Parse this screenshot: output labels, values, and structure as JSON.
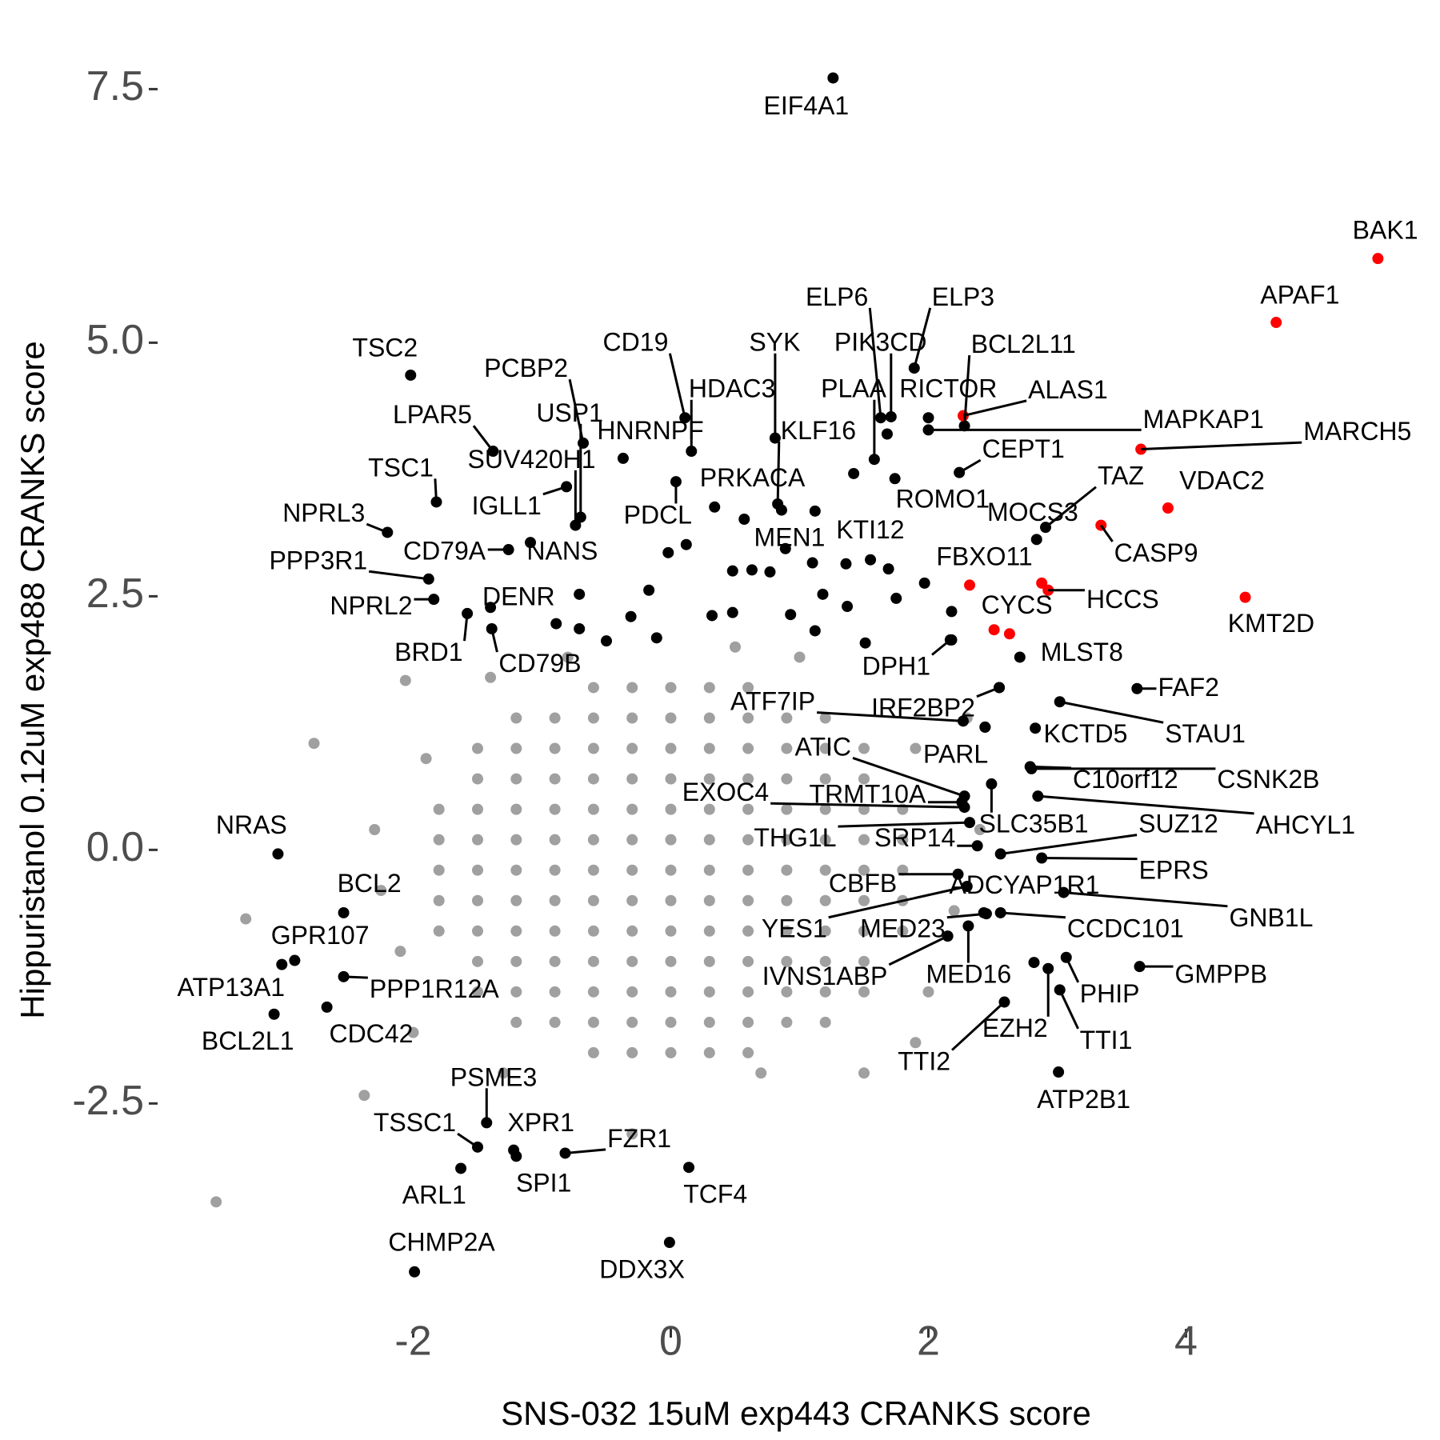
{
  "chart_data": {
    "type": "scatter",
    "x_label": "SNS-032 15uM exp443 CRANKS score",
    "y_label": "Hippuristanol 0.12uM exp488 CRANKS score",
    "xlim": [
      -3.9,
      5.8
    ],
    "ylim": [
      -4.6,
      8.0
    ],
    "xticks": [
      -2,
      0,
      2,
      4
    ],
    "yticks": [
      {
        "value": -2.5,
        "label": "-2.5"
      },
      {
        "value": 0,
        "label": "0.0"
      },
      {
        "value": 2.5,
        "label": "2.5"
      },
      {
        "value": 5,
        "label": "5.0"
      },
      {
        "value": 7.5,
        "label": "7.5"
      }
    ],
    "series": [
      {
        "color": "#a0a0a0",
        "x": [
          -0.6,
          -0.3,
          0,
          0.3,
          0.6,
          -1.2,
          -0.9,
          -0.6,
          -0.3,
          0,
          0.3,
          0.6,
          0.9,
          1.2,
          -1.5,
          -1.2,
          -0.9,
          -0.6,
          -0.3,
          0,
          0.3,
          0.6,
          0.9,
          1.2,
          1.5,
          -1.5,
          -1.2,
          -0.9,
          -0.6,
          -0.3,
          0,
          0.3,
          0.6,
          0.9,
          1.2,
          1.5,
          -1.8,
          -1.5,
          -1.2,
          -0.9,
          -0.6,
          -0.3,
          0,
          0.3,
          0.6,
          0.9,
          1.2,
          1.5,
          1.8,
          -1.8,
          -1.5,
          -1.2,
          -0.9,
          -0.6,
          -0.3,
          0,
          0.3,
          0.6,
          0.9,
          1.2,
          1.5,
          1.8,
          -1.8,
          -1.5,
          -1.2,
          -0.9,
          -0.6,
          -0.3,
          0,
          0.3,
          0.6,
          0.9,
          1.2,
          1.5,
          1.8,
          -1.8,
          -1.5,
          -1.2,
          -0.9,
          -0.6,
          -0.3,
          0,
          0.3,
          0.6,
          0.9,
          1.2,
          1.5,
          1.8,
          -1.8,
          -1.5,
          -1.2,
          -0.9,
          -0.6,
          -0.3,
          0,
          0.3,
          0.6,
          0.9,
          1.2,
          1.5,
          1.8,
          -1.5,
          -1.2,
          -0.9,
          -0.6,
          -0.3,
          0,
          0.3,
          0.6,
          0.9,
          1.2,
          1.5,
          -1.5,
          -1.2,
          -0.9,
          -0.6,
          -0.3,
          0,
          0.3,
          0.6,
          0.9,
          1.2,
          1.5,
          -1.2,
          -0.9,
          -0.6,
          -0.3,
          0,
          0.3,
          0.6,
          0.9,
          1.2,
          -0.6,
          -0.3,
          0,
          0.3,
          0.6,
          -3.53,
          -3.3,
          -2.77,
          -2.06,
          -2.38,
          -2.3,
          -2.25,
          -2.1,
          2.3,
          2.4,
          2.2,
          1.9,
          1.5,
          -0.3,
          -1.3,
          0.7,
          1.0,
          0.5,
          -0.8,
          -1.4,
          2.0,
          -2.0,
          1.9,
          -1.9
        ],
        "y": [
          1.6,
          1.6,
          1.6,
          1.6,
          1.6,
          1.3,
          1.3,
          1.3,
          1.3,
          1.3,
          1.3,
          1.3,
          1.3,
          1.3,
          1.0,
          1.0,
          1.0,
          1.0,
          1.0,
          1.0,
          1.0,
          1.0,
          1.0,
          1.0,
          1.0,
          0.7,
          0.7,
          0.7,
          0.7,
          0.7,
          0.7,
          0.7,
          0.7,
          0.7,
          0.7,
          0.7,
          0.4,
          0.4,
          0.4,
          0.4,
          0.4,
          0.4,
          0.4,
          0.4,
          0.4,
          0.4,
          0.4,
          0.4,
          0.4,
          0.1,
          0.1,
          0.1,
          0.1,
          0.1,
          0.1,
          0.1,
          0.1,
          0.1,
          0.1,
          0.1,
          0.1,
          0.1,
          -0.2,
          -0.2,
          -0.2,
          -0.2,
          -0.2,
          -0.2,
          -0.2,
          -0.2,
          -0.2,
          -0.2,
          -0.2,
          -0.2,
          -0.2,
          -0.5,
          -0.5,
          -0.5,
          -0.5,
          -0.5,
          -0.5,
          -0.5,
          -0.5,
          -0.5,
          -0.5,
          -0.5,
          -0.5,
          -0.5,
          -0.8,
          -0.8,
          -0.8,
          -0.8,
          -0.8,
          -0.8,
          -0.8,
          -0.8,
          -0.8,
          -0.8,
          -0.8,
          -0.8,
          -0.8,
          -1.1,
          -1.1,
          -1.1,
          -1.1,
          -1.1,
          -1.1,
          -1.1,
          -1.1,
          -1.1,
          -1.1,
          -1.1,
          -1.4,
          -1.4,
          -1.4,
          -1.4,
          -1.4,
          -1.4,
          -1.4,
          -1.4,
          -1.4,
          -1.4,
          -1.4,
          -1.7,
          -1.7,
          -1.7,
          -1.7,
          -1.7,
          -1.7,
          -1.7,
          -1.7,
          -1.7,
          -2.0,
          -2.0,
          -2.0,
          -2.0,
          -2.0,
          -3.47,
          -0.68,
          1.05,
          1.67,
          -2.42,
          0.2,
          -0.4,
          -1.0,
          1.3,
          0.2,
          -0.6,
          -1.9,
          -2.2,
          -2.8,
          -2.2,
          -2.2,
          1.9,
          2.0,
          1.9,
          1.7,
          -1.4,
          -1.8,
          1.0,
          0.9
        ]
      },
      {
        "color": "#000000",
        "labels": [
          "EIF4A1",
          "TSC2",
          "LPAR5",
          "TSC1",
          "NPRL3",
          "PPP3R1",
          "NPRL2",
          "BRD1",
          "CD79A",
          "NANS",
          "IGLL1",
          "DENR",
          "CD79B",
          "PCBP2",
          "USP1",
          "SUV420H1",
          "CD19",
          "HDAC3",
          "HNRNPF",
          "PDCL",
          "SYK",
          "KLF16",
          "PRKACA",
          "MEN1",
          "KTI12",
          "ELP6",
          "ELP3",
          "PIK3CD",
          "PLAA",
          "RICTOR",
          "BCL2L11",
          "MAPKAP1",
          "CEPT1",
          "ROMO1",
          "TAZ",
          "MOCS3",
          "DPH1",
          "MLST8",
          "FAF2",
          "STAU1",
          "KCTD5",
          "C10orf12",
          "CSNK2B",
          "AHCYL1",
          "ATF7IP",
          "IRF2BP2",
          "PARL",
          "ATIC",
          "EXOC4",
          "TRMT10A",
          "THG1L",
          "SRP14",
          "SLC35B1",
          "SUZ12",
          "EPRS",
          "CBFB",
          "ADCYAP1R1",
          "GNB1L",
          "YES1",
          "MED23",
          "CCDC101",
          "IVNS1ABP",
          "MED16",
          "GMPPB",
          "PHIP",
          "TTI1",
          "EZH2",
          "TTI2",
          "ATP2B1",
          "NRAS",
          "BCL2",
          "GPR107",
          "ATP13A1",
          "PPP1R12A",
          "BCL2L1",
          "CDC42",
          "PSME3",
          "TSSC1",
          "XPR1",
          "ARL1",
          "SPI1",
          "FZR1",
          "TCF4",
          "CHMP2A",
          "DDX3X",
          null,
          null,
          null,
          null,
          null,
          null,
          null,
          null,
          null,
          null,
          null,
          null,
          null,
          null,
          null,
          null,
          null,
          null,
          null,
          null,
          null,
          null,
          null,
          null,
          null,
          null,
          null,
          null,
          null,
          null,
          null,
          null,
          null,
          null
        ],
        "x": [
          1.26,
          -2.02,
          -1.38,
          -1.82,
          -2.2,
          -1.88,
          -1.84,
          -1.58,
          -1.26,
          -1.09,
          -0.81,
          -1.4,
          -1.39,
          -0.68,
          -0.7,
          -0.74,
          0.11,
          0.16,
          -0.37,
          0.04,
          0.81,
          0.83,
          0.34,
          0.89,
          1.55,
          1.63,
          1.89,
          1.71,
          1.58,
          2.0,
          2.28,
          2.0,
          2.24,
          1.74,
          2.91,
          2.84,
          2.17,
          2.71,
          3.62,
          3.02,
          2.83,
          2.79,
          2.8,
          2.85,
          2.27,
          2.55,
          2.44,
          2.28,
          2.28,
          2.26,
          2.32,
          2.38,
          2.49,
          2.56,
          2.88,
          2.23,
          2.43,
          3.05,
          2.3,
          2.45,
          2.56,
          2.15,
          2.31,
          3.64,
          3.07,
          3.02,
          2.93,
          2.59,
          3.01,
          -3.05,
          -2.54,
          -2.92,
          -3.02,
          -2.54,
          -3.08,
          -2.67,
          -1.43,
          -1.5,
          -1.22,
          -1.63,
          -1.2,
          -0.82,
          0.14,
          -1.99,
          -0.01,
          0.48,
          0.63,
          0.77,
          1.1,
          1.36,
          1.69,
          1.97,
          1.75,
          2.18,
          2.18,
          1.18,
          1.37,
          1.51,
          0.93,
          1.12,
          0.32,
          0.48,
          -0.31,
          -0.5,
          -0.11,
          -0.02,
          0.12,
          0.57,
          1.12,
          0.86,
          1.42,
          1.68,
          -0.17,
          -0.71,
          -0.89,
          -0.71,
          2.55,
          2.44,
          2.82
        ],
        "y": [
          7.61,
          4.68,
          3.93,
          3.43,
          3.13,
          2.67,
          2.47,
          2.33,
          2.96,
          3.03,
          3.58,
          2.39,
          2.18,
          4.01,
          3.28,
          3.2,
          4.26,
          3.93,
          3.86,
          3.63,
          4.06,
          3.41,
          3.38,
          2.97,
          2.86,
          4.26,
          4.75,
          4.27,
          3.85,
          4.26,
          4.18,
          4.14,
          3.72,
          3.66,
          3.18,
          3.06,
          2.07,
          1.9,
          1.59,
          1.46,
          1.2,
          0.82,
          0.8,
          0.53,
          1.27,
          1.6,
          1.21,
          0.53,
          0.42,
          0.47,
          0.27,
          0.04,
          0.65,
          -0.04,
          -0.08,
          -0.24,
          -0.62,
          -0.42,
          -0.36,
          -0.63,
          -0.62,
          -0.85,
          -0.75,
          -1.15,
          -1.06,
          -1.38,
          -1.17,
          -1.5,
          -2.19,
          -0.04,
          -0.62,
          -1.09,
          -1.13,
          -1.25,
          -1.62,
          -1.55,
          -2.69,
          -2.93,
          -2.96,
          -3.14,
          -3.02,
          -2.99,
          -3.13,
          -4.16,
          -3.87,
          2.75,
          2.76,
          2.74,
          2.83,
          2.82,
          2.77,
          2.63,
          2.48,
          2.35,
          2.07,
          2.52,
          2.4,
          2.04,
          2.32,
          2.16,
          2.31,
          2.34,
          2.3,
          2.06,
          2.09,
          2.93,
          3.01,
          3.26,
          3.34,
          3.35,
          3.71,
          4.1,
          2.56,
          2.52,
          2.23,
          2.18,
          1.6,
          1.21,
          -1.11
        ]
      },
      {
        "color": "#ff0000",
        "labels": [
          "BAK1",
          "APAF1",
          "ALAS1",
          "MARCH5",
          "VDAC2",
          "CASP9",
          "FBXO11",
          "CYCS",
          "HCCS",
          "KMT2D",
          null,
          null
        ],
        "x": [
          5.49,
          4.7,
          2.27,
          3.65,
          3.86,
          3.34,
          2.32,
          2.88,
          2.93,
          4.46,
          2.51,
          2.63
        ],
        "y": [
          5.83,
          5.2,
          4.28,
          3.95,
          3.37,
          3.2,
          2.61,
          2.63,
          2.56,
          2.49,
          2.17,
          2.13
        ]
      }
    ]
  }
}
